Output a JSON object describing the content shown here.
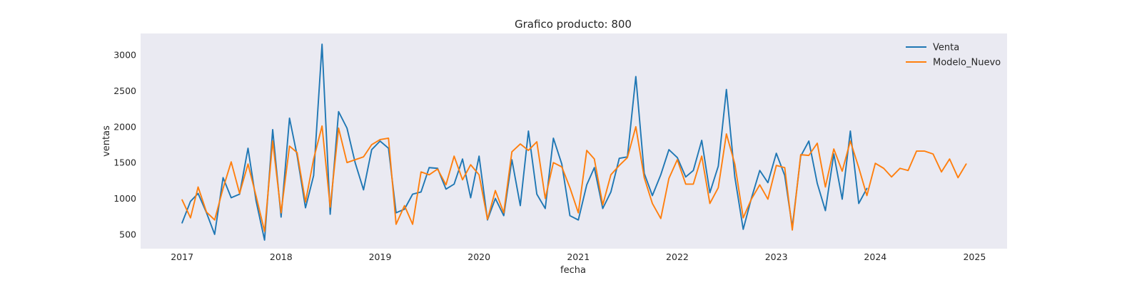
{
  "chart_data": {
    "type": "line",
    "title": "Grafico producto: 800",
    "xlabel": "fecha",
    "ylabel": "ventas",
    "xlim": [
      "2016-08-01",
      "2025-05-01"
    ],
    "ylim": [
      300,
      3300
    ],
    "x_ticks": [
      "2017-01-01",
      "2018-01-01",
      "2019-01-01",
      "2020-01-01",
      "2021-01-01",
      "2022-01-01",
      "2023-01-01",
      "2024-01-01",
      "2025-01-01"
    ],
    "x_tick_labels": [
      "2017",
      "2018",
      "2019",
      "2020",
      "2021",
      "2022",
      "2023",
      "2024",
      "2025"
    ],
    "y_ticks": [
      500,
      1000,
      1500,
      2000,
      2500,
      3000
    ],
    "y_tick_labels": [
      "500",
      "1000",
      "1500",
      "2000",
      "2500",
      "3000"
    ],
    "grid": false,
    "background": "#eaeaf2",
    "legend_position": "upper right",
    "series": [
      {
        "name": "Venta",
        "color": "#1f77b4",
        "start": "2017-01",
        "values": [
          660,
          960,
          1070,
          800,
          500,
          1290,
          1010,
          1060,
          1700,
          960,
          420,
          1960,
          740,
          2120,
          1600,
          870,
          1320,
          3150,
          780,
          2210,
          1980,
          1500,
          1120,
          1680,
          1800,
          1700,
          800,
          850,
          1060,
          1090,
          1430,
          1420,
          1130,
          1200,
          1550,
          1010,
          1590,
          700,
          1000,
          760,
          1540,
          900,
          1940,
          1060,
          860,
          1840,
          1480,
          760,
          700,
          1190,
          1430,
          860,
          1090,
          1560,
          1580,
          2700,
          1350,
          1040,
          1330,
          1680,
          1570,
          1300,
          1390,
          1810,
          1080,
          1450,
          2520,
          1300,
          570,
          1000,
          1390,
          1220,
          1630,
          1320,
          600,
          1590,
          1800,
          1210,
          830,
          1620,
          990,
          1940,
          930,
          1140
        ]
      },
      {
        "name": "Modelo_Nuevo",
        "color": "#ff7f0e",
        "start": "2017-01",
        "values": [
          980,
          730,
          1160,
          810,
          700,
          1140,
          1510,
          1070,
          1480,
          1030,
          540,
          1800,
          800,
          1730,
          1640,
          950,
          1550,
          2010,
          880,
          1980,
          1500,
          1540,
          1580,
          1750,
          1820,
          1840,
          640,
          900,
          640,
          1370,
          1330,
          1410,
          1190,
          1590,
          1260,
          1470,
          1330,
          710,
          1110,
          800,
          1650,
          1760,
          1670,
          1790,
          1000,
          1500,
          1440,
          1150,
          800,
          1670,
          1550,
          910,
          1330,
          1460,
          1570,
          2000,
          1290,
          930,
          720,
          1280,
          1540,
          1200,
          1200,
          1590,
          930,
          1150,
          1900,
          1480,
          730,
          990,
          1190,
          990,
          1460,
          1430,
          560,
          1610,
          1600,
          1770,
          1160,
          1690,
          1380,
          1800,
          1430,
          1040,
          1490,
          1420,
          1300,
          1420,
          1390,
          1660,
          1660,
          1620,
          1370,
          1550,
          1290,
          1480
        ]
      }
    ]
  }
}
